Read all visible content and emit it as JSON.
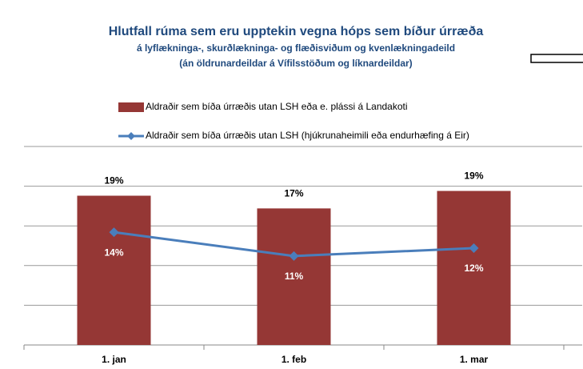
{
  "chart_data": {
    "type": "combo",
    "title": "Hlutfall rúma sem eru upptekin  vegna hóps sem bíður úrræða",
    "subtitle": [
      "á lyflækninga-, skurðlækninga- og flæðisviðum og kvenlækningadeild",
      "(án öldrunardeildar á Vífilsstöðum og líknardeildar)"
    ],
    "categories": [
      "1. jan",
      "1. feb",
      "1. mar"
    ],
    "series": [
      {
        "name": "Aldraðir sem bíða úrræðis utan LSH eða e. plássi á Landakoti",
        "type": "bar",
        "color": "#953735",
        "values": [
          18.8,
          17.2,
          19.4
        ],
        "value_labels": [
          "19%",
          "17%",
          "19%"
        ]
      },
      {
        "name": "Aldraðir sem bíða úrræðis utan LSH (hjúkrunaheimili eða endurhæfing á Eir)",
        "type": "line",
        "color": "#4a7ebb",
        "values": [
          14.2,
          11.2,
          12.2
        ],
        "value_labels": [
          "14%",
          "11%",
          "12%"
        ]
      }
    ],
    "ylim": [
      0,
      25
    ],
    "yticks": [
      0,
      5,
      10,
      15,
      20,
      25
    ],
    "grid": true
  }
}
